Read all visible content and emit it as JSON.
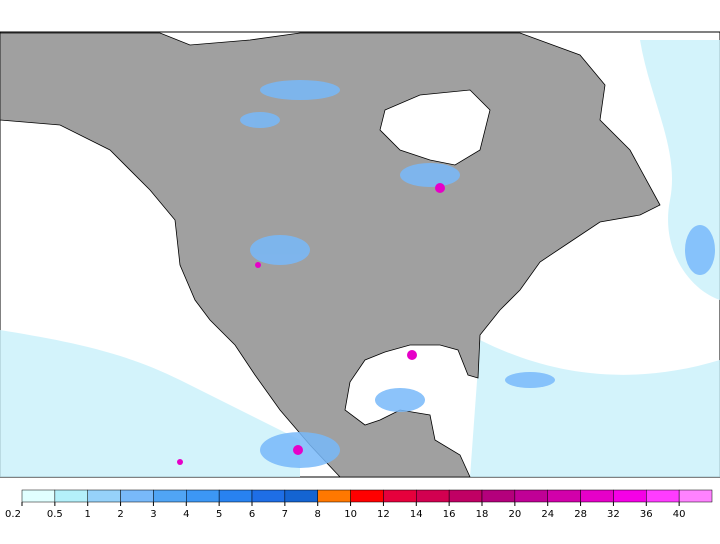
{
  "legend": {
    "ticks": [
      "0.2",
      "0.5",
      "1",
      "2",
      "3",
      "4",
      "5",
      "6",
      "7",
      "8",
      "10",
      "12",
      "14",
      "16",
      "18",
      "20",
      "24",
      "28",
      "32",
      "36",
      "40"
    ],
    "colors": [
      "#e1ffff",
      "#b4f0fa",
      "#96d2fa",
      "#78b9fa",
      "#50a5f5",
      "#3c97f5",
      "#2882f0",
      "#1e6ee6",
      "#1464d2",
      "#ff7800",
      "#ff0000",
      "#e6003c",
      "#d20050",
      "#c00064",
      "#b4007c",
      "#c00096",
      "#d200aa",
      "#e600c8",
      "#f500e6",
      "#ff3cff",
      "#ff82ff"
    ]
  }
}
